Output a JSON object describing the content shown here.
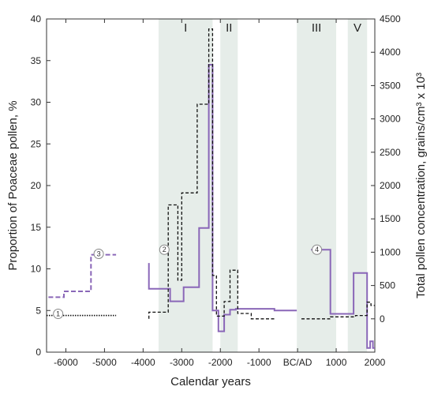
{
  "chart_data": {
    "type": "line",
    "xlabel": "Calendar years",
    "ylabel_left": "Proportion of Poaceae pollen, %",
    "ylabel_right": "Total pollen concentration, grains/cm³ x 10³",
    "xlim": [
      -6500,
      2000
    ],
    "ylim_left": [
      0,
      40
    ],
    "ylim_right": [
      -500,
      4500
    ],
    "x_ticks": [
      {
        "value": -6000,
        "label": "-6000"
      },
      {
        "value": -5000,
        "label": "-5000"
      },
      {
        "value": -4000,
        "label": "-4000"
      },
      {
        "value": -3000,
        "label": "-3000"
      },
      {
        "value": -2000,
        "label": "-2000"
      },
      {
        "value": -1000,
        "label": "-1000"
      },
      {
        "value": 0,
        "label": "BC/AD"
      },
      {
        "value": 1000,
        "label": "1000"
      },
      {
        "value": 2000,
        "label": "2000"
      }
    ],
    "y_left_ticks": [
      0,
      5,
      10,
      15,
      20,
      25,
      30,
      35,
      40
    ],
    "y_right_ticks": [
      0,
      500,
      1000,
      1500,
      2000,
      2500,
      3000,
      3500,
      4000,
      4500
    ],
    "periods": [
      {
        "label": "I",
        "start": -3600,
        "end": -2200
      },
      {
        "label": "II",
        "start": -2000,
        "end": -1550
      },
      {
        "label": "III",
        "start": -20,
        "end": 1000
      },
      {
        "label": "V",
        "start": 1300,
        "end": 1800
      }
    ],
    "markers": [
      {
        "label": "1",
        "x": -6200,
        "y": 4.6
      },
      {
        "label": "2",
        "x": -3450,
        "y": 12.3
      },
      {
        "label": "3",
        "x": -5150,
        "y": 11.8
      },
      {
        "label": "4",
        "x": 500,
        "y": 12.3
      }
    ],
    "colors": {
      "poaceae": "#8a67b8",
      "concentration": "#111111",
      "period_band": "#e6ede9"
    },
    "series": [
      {
        "axis": "left",
        "style": "dashed-purple",
        "values": [
          [
            -6450,
            6.6
          ],
          [
            -6050,
            6.6
          ],
          [
            -6050,
            7.3
          ],
          [
            -5350,
            7.3
          ],
          [
            -5350,
            11.7
          ],
          [
            -4700,
            11.7
          ]
        ]
      },
      {
        "axis": "right",
        "style": "dotted-black",
        "values": [
          [
            -6500,
            50
          ],
          [
            -4700,
            50
          ]
        ]
      },
      {
        "axis": "left",
        "style": "solid-purple",
        "values": [
          [
            -3850,
            10.7
          ],
          [
            -3850,
            7.6
          ],
          [
            -3300,
            7.6
          ],
          [
            -3300,
            6.1
          ],
          [
            -2950,
            6.1
          ],
          [
            -2950,
            7.8
          ],
          [
            -2550,
            7.8
          ],
          [
            -2550,
            14.9
          ],
          [
            -2300,
            14.9
          ],
          [
            -2300,
            34.5
          ],
          [
            -2200,
            34.5
          ],
          [
            -2200,
            5.0
          ],
          [
            -2050,
            5.0
          ],
          [
            -2050,
            2.5
          ],
          [
            -1900,
            2.5
          ],
          [
            -1900,
            4.5
          ],
          [
            -1750,
            4.5
          ],
          [
            -1750,
            5.1
          ],
          [
            -1600,
            5.1
          ],
          [
            -1600,
            5.2
          ],
          [
            -600,
            5.2
          ],
          [
            -600,
            5.0
          ],
          [
            -20,
            5.0
          ]
        ]
      },
      {
        "axis": "right",
        "style": "dashed-black",
        "values": [
          [
            -3850,
            0
          ],
          [
            -3850,
            100
          ],
          [
            -3350,
            100
          ],
          [
            -3350,
            1710
          ],
          [
            -3100,
            1710
          ],
          [
            -3100,
            580
          ],
          [
            -3000,
            580
          ],
          [
            -3000,
            1890
          ],
          [
            -2600,
            1890
          ],
          [
            -2600,
            3220
          ],
          [
            -2300,
            3220
          ],
          [
            -2300,
            4350
          ],
          [
            -2200,
            4350
          ],
          [
            -2200,
            650
          ],
          [
            -2100,
            650
          ],
          [
            -2100,
            40
          ],
          [
            -1900,
            40
          ],
          [
            -1900,
            260
          ],
          [
            -1750,
            260
          ],
          [
            -1750,
            730
          ],
          [
            -1550,
            730
          ],
          [
            -1550,
            80
          ],
          [
            -1200,
            80
          ],
          [
            -1200,
            0
          ],
          [
            -600,
            0
          ]
        ]
      },
      {
        "axis": "left",
        "style": "solid-purple",
        "values": [
          [
            350,
            12.3
          ],
          [
            850,
            12.3
          ],
          [
            850,
            4.6
          ],
          [
            1300,
            4.6
          ],
          [
            1300,
            4.6
          ],
          [
            1450,
            4.6
          ],
          [
            1450,
            9.5
          ],
          [
            1800,
            9.5
          ],
          [
            1800,
            0.5
          ],
          [
            1880,
            0.5
          ],
          [
            1880,
            1.3
          ],
          [
            1950,
            1.3
          ],
          [
            1950,
            0.5
          ],
          [
            2000,
            0.5
          ]
        ]
      },
      {
        "axis": "right",
        "style": "dashed-black",
        "values": [
          [
            100,
            0
          ],
          [
            850,
            0
          ],
          [
            850,
            30
          ],
          [
            1500,
            30
          ],
          [
            1500,
            50
          ],
          [
            1800,
            50
          ],
          [
            1800,
            250
          ],
          [
            1900,
            250
          ],
          [
            1900,
            200
          ],
          [
            2000,
            200
          ]
        ]
      }
    ]
  }
}
